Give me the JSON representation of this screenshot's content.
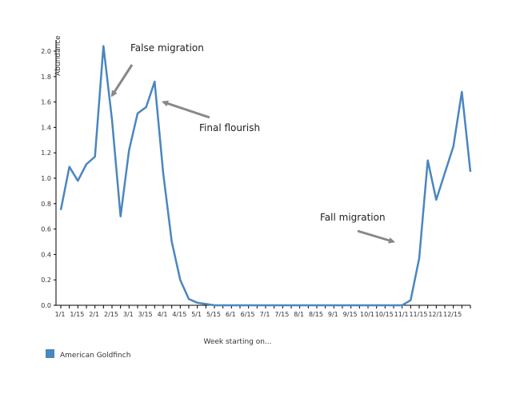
{
  "chart_data": {
    "type": "line",
    "title": "",
    "xlabel": "Week starting on...",
    "ylabel": "Abundance",
    "ylim": [
      0,
      2.1
    ],
    "yticks": [
      0.0,
      0.2,
      0.4,
      0.6,
      0.8,
      1.0,
      1.2,
      1.4,
      1.6,
      1.8,
      2.0
    ],
    "ytick_labels": [
      "0.0",
      "0.2",
      "0.4",
      "0.6",
      "0.8",
      "1.0",
      "1.2",
      "1.4",
      "1.6",
      "1.8",
      "2.0"
    ],
    "xtick_labels": [
      "1/1",
      "1/15",
      "2/1",
      "2/15",
      "3/1",
      "3/15",
      "4/1",
      "4/15",
      "5/1",
      "5/15",
      "6/1",
      "6/15",
      "7/1",
      "7/15",
      "8/1",
      "8/15",
      "9/1",
      "9/15",
      "10/1",
      "10/15",
      "11/1",
      "11/15",
      "12/1",
      "12/15"
    ],
    "legend_position": "bottom-left",
    "series": [
      {
        "name": "American Goldfinch",
        "color": "#4a86c0",
        "values": [
          0.75,
          1.09,
          0.98,
          1.11,
          1.17,
          2.04,
          1.46,
          0.7,
          1.22,
          1.51,
          1.56,
          1.76,
          1.04,
          0.5,
          0.2,
          0.05,
          0.02,
          0.01,
          0.0,
          0.0,
          0.0,
          0.0,
          0.0,
          0.0,
          0.0,
          0.0,
          0.0,
          0.0,
          0.0,
          0.0,
          0.0,
          0.0,
          0.0,
          0.0,
          0.0,
          0.0,
          0.0,
          0.0,
          0.0,
          0.0,
          0.0,
          0.04,
          0.37,
          1.14,
          0.83,
          1.04,
          1.25,
          1.68,
          1.05
        ]
      }
    ],
    "annotations": [
      {
        "text": "False migration",
        "target_week": 6,
        "target_value": 1.65
      },
      {
        "text": "Final flourish",
        "target_week": 12,
        "target_value": 1.6
      },
      {
        "text": "Fall migration",
        "target_week": 39,
        "target_value": 0.5
      }
    ]
  }
}
